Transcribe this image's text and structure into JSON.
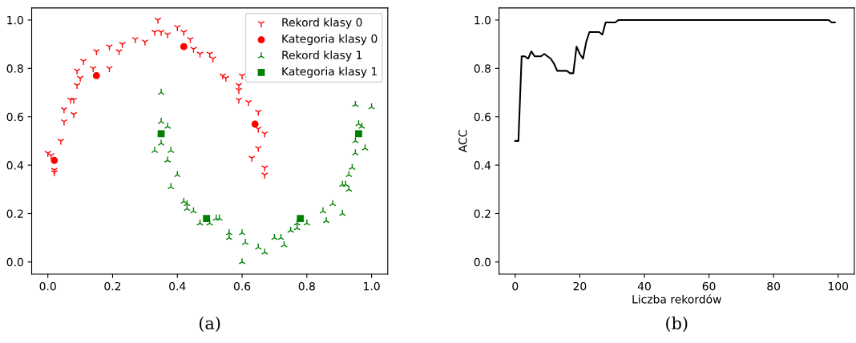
{
  "chart_data": [
    {
      "type": "scatter",
      "annotations": [
        "(a)"
      ],
      "legend": "top right",
      "grid": false,
      "xlim": [
        -0.05,
        1.05
      ],
      "ylim": [
        -0.05,
        1.05
      ],
      "xticks": [
        {
          "value": 0,
          "label": "0.0"
        },
        {
          "value": 0.2,
          "label": "0.2"
        },
        {
          "value": 0.4,
          "label": "0.4"
        },
        {
          "value": 0.6,
          "label": "0.6"
        },
        {
          "value": 0.8,
          "label": "0.8"
        },
        {
          "value": 1,
          "label": "1.0"
        }
      ],
      "yticks": [
        {
          "value": 0,
          "label": "0.0"
        },
        {
          "value": 0.2,
          "label": "0.2"
        },
        {
          "value": 0.4,
          "label": "0.4"
        },
        {
          "value": 0.6,
          "label": "0.6"
        },
        {
          "value": 0.8,
          "label": "0.8"
        },
        {
          "value": 1,
          "label": "1.0"
        }
      ],
      "series": [
        {
          "name": "Rekord klasy 0",
          "color": "#ff0000",
          "marker": "cross",
          "x": [
            0.34,
            0.4,
            0.33,
            0.35,
            0.37,
            0.42,
            0.44,
            0.45,
            0.47,
            0.5,
            0.51,
            0.27,
            0.3,
            0.23,
            0.22,
            0.19,
            0.15,
            0.11,
            0.14,
            0.19,
            0.09,
            0.1,
            0.09,
            0.07,
            0.08,
            0.05,
            0.08,
            0.05,
            0.04,
            0.0,
            0.01,
            0.02,
            0.02,
            0.54,
            0.55,
            0.6,
            0.59,
            0.59,
            0.59,
            0.62,
            0.65,
            0.65,
            0.67,
            0.65,
            0.63,
            0.67,
            0.67
          ],
          "values": [
            1.0,
            0.97,
            0.95,
            0.95,
            0.94,
            0.95,
            0.92,
            0.88,
            0.86,
            0.86,
            0.84,
            0.92,
            0.91,
            0.9,
            0.87,
            0.89,
            0.87,
            0.83,
            0.8,
            0.8,
            0.79,
            0.76,
            0.73,
            0.67,
            0.67,
            0.63,
            0.61,
            0.58,
            0.5,
            0.45,
            0.44,
            0.38,
            0.37,
            0.77,
            0.76,
            0.77,
            0.73,
            0.71,
            0.67,
            0.66,
            0.62,
            0.55,
            0.53,
            0.47,
            0.43,
            0.39,
            0.36
          ]
        },
        {
          "name": "Kategoria klasy 0",
          "color": "#ff0000",
          "marker": "circle",
          "x": [
            0.15,
            0.42,
            0.02,
            0.64
          ],
          "values": [
            0.77,
            0.89,
            0.42,
            0.57
          ]
        },
        {
          "name": "Rekord klasy 1",
          "color": "#008000",
          "marker": "cross",
          "x": [
            0.35,
            0.35,
            0.37,
            0.35,
            0.33,
            0.38,
            0.37,
            0.4,
            0.38,
            0.42,
            0.43,
            0.43,
            0.45,
            0.47,
            0.5,
            0.52,
            0.53,
            0.56,
            0.56,
            0.6,
            0.61,
            0.65,
            0.67,
            0.6,
            0.7,
            0.72,
            0.73,
            0.75,
            0.77,
            0.77,
            0.8,
            0.85,
            0.86,
            0.88,
            0.91,
            0.91,
            0.92,
            0.93,
            0.93,
            0.94,
            0.95,
            0.95,
            0.98,
            0.96,
            0.97,
            0.95,
            1.0
          ],
          "values": [
            0.7,
            0.58,
            0.56,
            0.49,
            0.46,
            0.46,
            0.42,
            0.36,
            0.31,
            0.25,
            0.24,
            0.22,
            0.21,
            0.16,
            0.16,
            0.18,
            0.18,
            0.12,
            0.1,
            0.12,
            0.08,
            0.06,
            0.04,
            0.0,
            0.1,
            0.1,
            0.07,
            0.13,
            0.16,
            0.14,
            0.16,
            0.21,
            0.17,
            0.24,
            0.2,
            0.32,
            0.32,
            0.3,
            0.36,
            0.39,
            0.45,
            0.5,
            0.47,
            0.57,
            0.56,
            0.65,
            0.64
          ]
        },
        {
          "name": "Kategoria klasy 1",
          "color": "#008000",
          "marker": "square",
          "x": [
            0.35,
            0.49,
            0.78,
            0.96
          ],
          "values": [
            0.53,
            0.18,
            0.18,
            0.53
          ]
        }
      ]
    },
    {
      "type": "line",
      "annotations": [
        "(b)"
      ],
      "xlabel": "Liczba rekordów",
      "ylabel": "ACC",
      "grid": false,
      "legend": false,
      "xlim": [
        -5,
        105
      ],
      "ylim": [
        -0.05,
        1.05
      ],
      "xticks": [
        0,
        20,
        40,
        60,
        80,
        100
      ],
      "yticks": [
        {
          "value": 0,
          "label": "0.0"
        },
        {
          "value": 0.2,
          "label": "0.2"
        },
        {
          "value": 0.4,
          "label": "0.4"
        },
        {
          "value": 0.6,
          "label": "0.6"
        },
        {
          "value": 0.8,
          "label": "0.8"
        },
        {
          "value": 1,
          "label": "1.0"
        }
      ],
      "series": [
        {
          "color": "#000000",
          "x": [
            0,
            1,
            2,
            3,
            4,
            5,
            6,
            7,
            8,
            9,
            10,
            11,
            12,
            13,
            14,
            15,
            16,
            17,
            18,
            19,
            20,
            21,
            22,
            23,
            24,
            25,
            26,
            27,
            28,
            29,
            30,
            31,
            32,
            97,
            98,
            99
          ],
          "values": [
            0.5,
            0.5,
            0.85,
            0.85,
            0.84,
            0.87,
            0.85,
            0.85,
            0.85,
            0.86,
            0.85,
            0.84,
            0.82,
            0.79,
            0.79,
            0.79,
            0.79,
            0.78,
            0.78,
            0.89,
            0.86,
            0.84,
            0.91,
            0.95,
            0.95,
            0.95,
            0.95,
            0.94,
            0.99,
            0.99,
            0.99,
            0.99,
            1.0,
            1.0,
            0.99,
            0.99
          ]
        }
      ]
    }
  ]
}
